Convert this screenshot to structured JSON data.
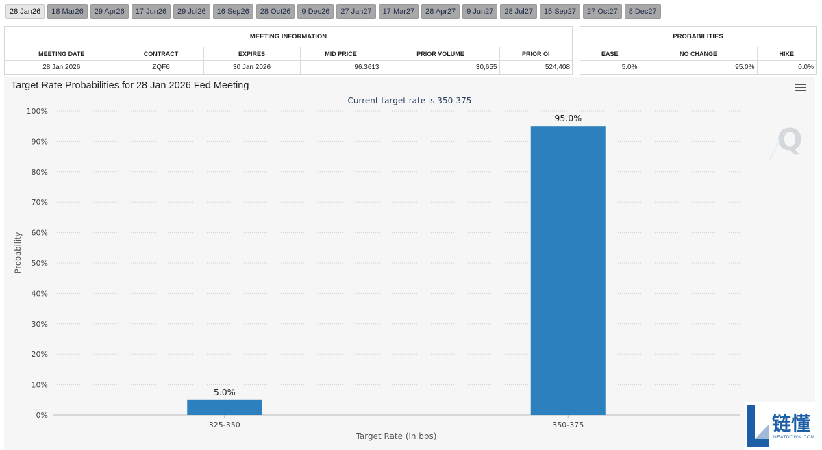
{
  "tabs": [
    "28 Jan26",
    "18 Mar26",
    "29 Apr26",
    "17 Jun26",
    "29 Jul26",
    "16 Sep26",
    "28 Oct26",
    "9 Dec26",
    "27 Jan27",
    "17 Mar27",
    "28 Apr27",
    "9 Jun27",
    "28 Jul27",
    "15 Sep27",
    "27 Oct27",
    "8 Dec27"
  ],
  "active_tab": 0,
  "meeting_info": {
    "caption": "MEETING INFORMATION",
    "headers": [
      "MEETING DATE",
      "CONTRACT",
      "EXPIRES",
      "MID PRICE",
      "PRIOR VOLUME",
      "PRIOR OI"
    ],
    "row": [
      "28 Jan 2026",
      "ZQF6",
      "30 Jan 2026",
      "96.3613",
      "30,655",
      "524,408"
    ]
  },
  "probabilities": {
    "caption": "PROBABILITIES",
    "headers": [
      "EASE",
      "NO CHANGE",
      "HIKE"
    ],
    "row": [
      "5.0%",
      "95.0%",
      "0.0%"
    ]
  },
  "watermark": {
    "text": "链懂",
    "sub": "NEATDOWN.COM"
  },
  "colors": {
    "bar": "#2b80bd",
    "tab_bg": "#a8a8a8",
    "panel_bg": "#f6f6f6"
  },
  "chart_data": {
    "type": "bar",
    "title": "Target Rate Probabilities for 28 Jan 2026 Fed Meeting",
    "subtitle": "Current target rate is 350-375",
    "xlabel": "Target Rate (in bps)",
    "ylabel": "Probability",
    "categories": [
      "325-350",
      "350-375"
    ],
    "values": [
      5.0,
      95.0
    ],
    "data_labels": [
      "5.0%",
      "95.0%"
    ],
    "ylim": [
      0,
      100
    ],
    "yticks": [
      "0%",
      "10%",
      "20%",
      "30%",
      "40%",
      "50%",
      "60%",
      "70%",
      "80%",
      "90%",
      "100%"
    ],
    "grid": true
  }
}
